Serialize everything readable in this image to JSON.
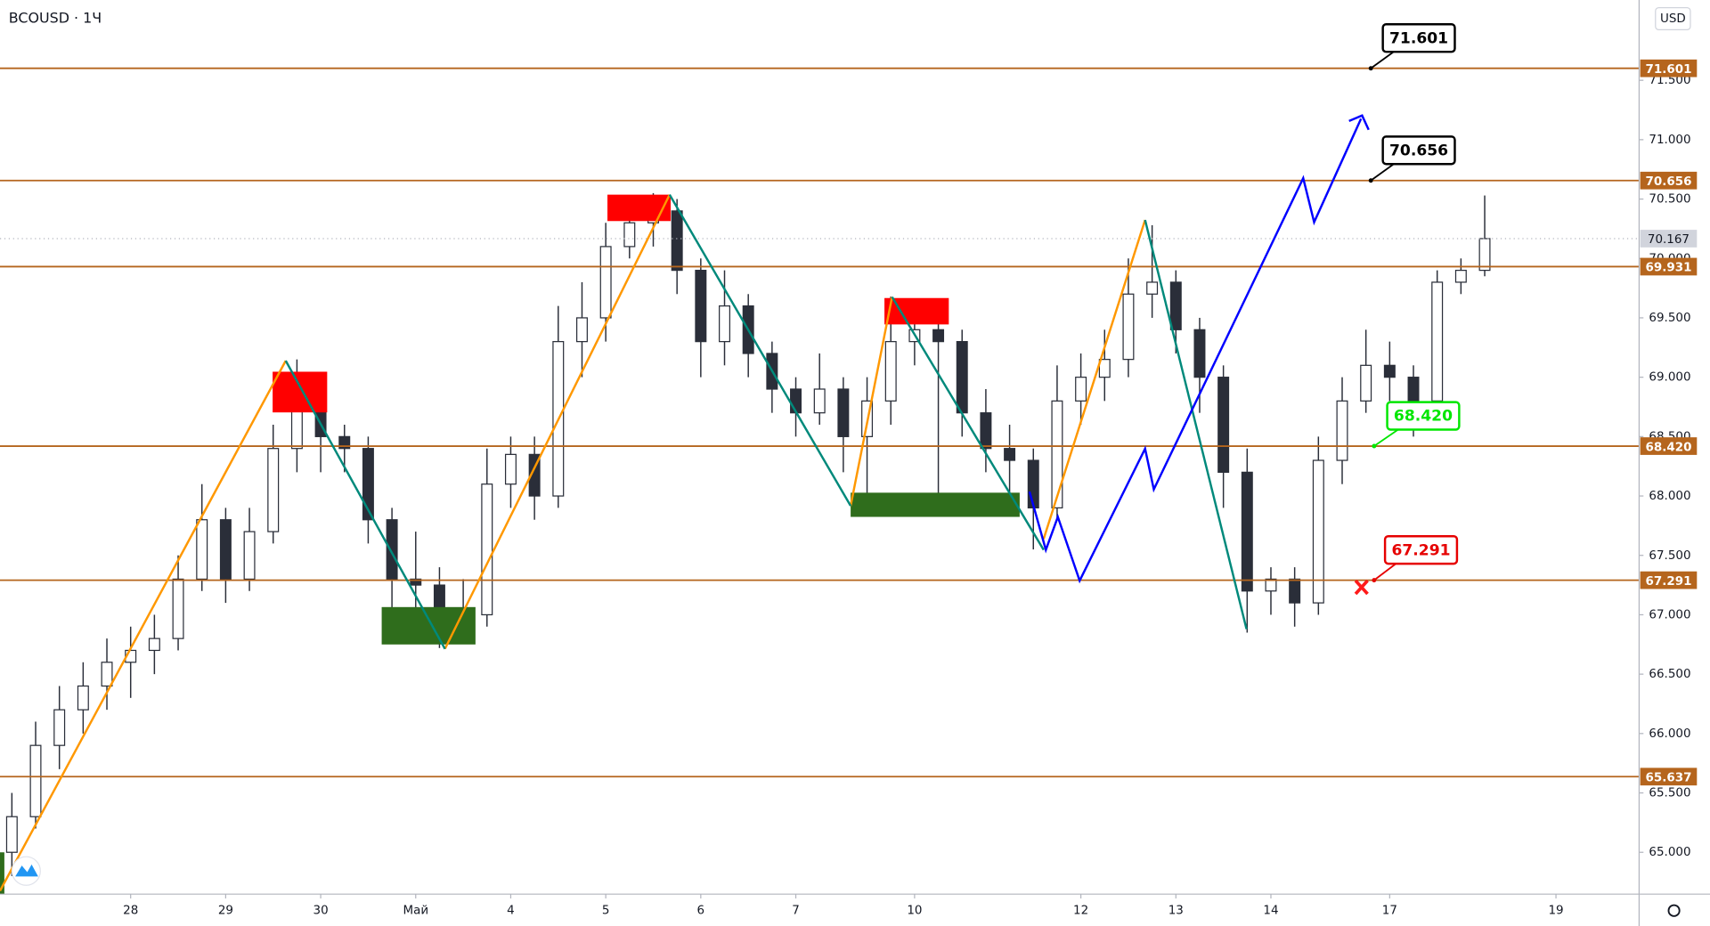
{
  "chart_data": {
    "type": "candlestick",
    "title": "BCOUSD · 1Ч",
    "currency": "USD",
    "categories": [
      null,
      null,
      null,
      null,
      null,
      "28",
      null,
      null,
      null,
      "29",
      null,
      null,
      null,
      "30",
      null,
      null,
      null,
      "Май",
      null,
      null,
      null,
      "4",
      null,
      null,
      null,
      "5",
      null,
      null,
      null,
      "6",
      null,
      null,
      null,
      "7",
      null,
      null,
      null,
      null,
      "10",
      null,
      null,
      null,
      null,
      null,
      null,
      "12",
      null,
      null,
      null,
      "13",
      null,
      null,
      null,
      "14",
      null,
      null,
      null,
      null,
      "17",
      null,
      null,
      null,
      null,
      null,
      null,
      "19",
      null,
      null,
      null
    ],
    "open": [
      65.0,
      65.3,
      65.9,
      66.2,
      66.4,
      66.6,
      66.7,
      66.8,
      67.3,
      67.8,
      67.3,
      67.7,
      68.4,
      68.8,
      68.5,
      68.4,
      67.8,
      67.3,
      67.25,
      66.9,
      67.0,
      68.1,
      68.35,
      68.0,
      69.3,
      69.5,
      70.1,
      70.3,
      70.4,
      69.9,
      69.3,
      69.6,
      69.2,
      68.9,
      68.7,
      68.9,
      68.5,
      68.8,
      69.3,
      69.4,
      69.3,
      68.7,
      68.4,
      68.3,
      67.9,
      68.8,
      69.0,
      69.15,
      69.7,
      69.8,
      69.4,
      69.0,
      68.2,
      67.2,
      67.3,
      67.1,
      68.3,
      68.8,
      69.1,
      69.0,
      68.8,
      69.8,
      69.9,
      null,
      null,
      null,
      null,
      null,
      null
    ],
    "high": [
      65.5,
      66.1,
      66.4,
      66.6,
      66.8,
      66.9,
      67.0,
      67.5,
      68.1,
      67.9,
      67.9,
      68.6,
      69.15,
      68.9,
      68.6,
      68.5,
      67.9,
      67.7,
      67.4,
      67.3,
      68.4,
      68.5,
      68.5,
      69.6,
      69.8,
      70.3,
      70.5,
      70.55,
      70.5,
      70.0,
      69.9,
      69.7,
      69.3,
      69.0,
      69.2,
      69.0,
      69.0,
      69.68,
      69.6,
      69.6,
      69.4,
      68.9,
      68.6,
      68.4,
      69.1,
      69.2,
      69.4,
      70.0,
      70.28,
      69.9,
      69.5,
      69.1,
      68.4,
      67.4,
      67.4,
      68.5,
      69.0,
      69.4,
      69.3,
      69.1,
      69.9,
      70.0,
      70.53,
      null,
      null,
      null,
      null,
      null,
      null
    ],
    "low": [
      64.8,
      65.2,
      65.7,
      66.0,
      66.2,
      66.3,
      66.5,
      66.7,
      67.2,
      67.1,
      67.2,
      67.6,
      68.2,
      68.2,
      68.2,
      67.6,
      67.0,
      66.9,
      66.72,
      66.8,
      66.9,
      67.9,
      67.8,
      67.9,
      69.0,
      69.3,
      70.0,
      70.1,
      69.7,
      69.0,
      69.1,
      69.0,
      68.7,
      68.5,
      68.6,
      68.2,
      68.0,
      68.6,
      69.1,
      67.88,
      68.5,
      68.2,
      68.0,
      67.55,
      67.8,
      68.6,
      68.8,
      69.0,
      69.5,
      69.2,
      68.7,
      67.9,
      66.85,
      67.0,
      66.9,
      67.0,
      68.1,
      68.7,
      68.8,
      68.5,
      68.6,
      69.7,
      69.85,
      null,
      null,
      null,
      null,
      null,
      null
    ],
    "close": [
      65.3,
      65.9,
      66.2,
      66.4,
      66.6,
      66.7,
      66.8,
      67.3,
      67.8,
      67.3,
      67.7,
      68.4,
      68.8,
      68.5,
      68.4,
      67.8,
      67.3,
      67.25,
      66.9,
      67.0,
      68.1,
      68.35,
      68.0,
      69.3,
      69.5,
      70.1,
      70.3,
      70.4,
      69.9,
      69.3,
      69.6,
      69.2,
      68.9,
      68.7,
      68.9,
      68.5,
      68.8,
      69.3,
      69.4,
      69.3,
      68.7,
      68.4,
      68.3,
      67.9,
      68.8,
      69.0,
      69.15,
      69.7,
      69.8,
      69.4,
      69.0,
      68.2,
      67.2,
      67.3,
      67.1,
      68.3,
      68.8,
      69.1,
      69.0,
      68.8,
      69.8,
      69.9,
      70.167,
      null,
      null,
      null,
      null,
      null,
      null
    ],
    "candle_color": "#2a2e39",
    "ylim": [
      64.648,
      72.176
    ],
    "yticks": [
      {
        "value": 65,
        "label": "65.000"
      },
      {
        "value": 65.5,
        "label": "65.500"
      },
      {
        "value": 66,
        "label": "66.000"
      },
      {
        "value": 66.5,
        "label": "66.500"
      },
      {
        "value": 67,
        "label": "67.000"
      },
      {
        "value": 67.5,
        "label": "67.500"
      },
      {
        "value": 68,
        "label": "68.000"
      },
      {
        "value": 68.5,
        "label": "68.500"
      },
      {
        "value": 69,
        "label": "69.000"
      },
      {
        "value": 69.5,
        "label": "69.500"
      },
      {
        "value": 70,
        "label": "70.000"
      },
      {
        "value": 70.5,
        "label": "70.500"
      },
      {
        "value": 71,
        "label": "71.000"
      },
      {
        "value": 71.5,
        "label": "71.500"
      }
    ],
    "levels": [
      71.601,
      70.656,
      69.931,
      {
        "value": 68.42,
        "label": "68.420"
      },
      67.291,
      65.637
    ],
    "level_color": "#b5651d",
    "callouts": [
      {
        "level": 0,
        "color": "#000000"
      },
      {
        "level": 1,
        "color": "#000000"
      },
      {
        "level": 3,
        "color": "#00e600"
      },
      {
        "level": 4,
        "color": "#e60000"
      }
    ]
  }
}
